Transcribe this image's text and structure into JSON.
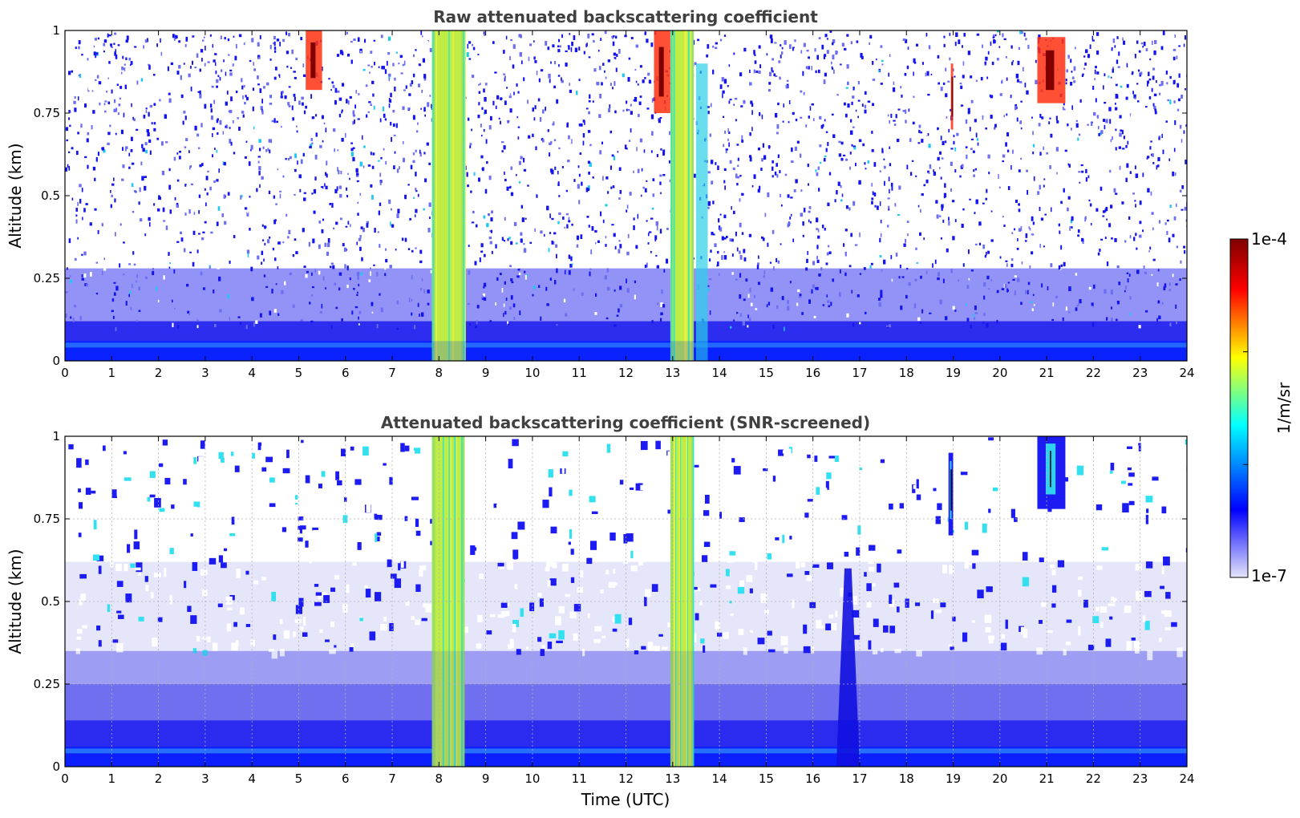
{
  "chart_data": [
    {
      "type": "heatmap",
      "title": "Raw attenuated backscattering coefficient",
      "xlabel": "",
      "ylabel": "Altitude (km)",
      "xlim": [
        0,
        24
      ],
      "ylim": [
        0,
        1
      ],
      "x_ticks": [
        "0",
        "1",
        "2",
        "3",
        "4",
        "5",
        "6",
        "7",
        "8",
        "9",
        "10",
        "11",
        "12",
        "13",
        "14",
        "15",
        "16",
        "17",
        "18",
        "19",
        "20",
        "21",
        "22",
        "23",
        "24"
      ],
      "y_ticks": [
        "0",
        "0.25",
        "0.5",
        "0.75",
        "1"
      ],
      "grid": false,
      "background_level": "noisy, blue speckle throughout",
      "features": [
        {
          "t_start": 7.85,
          "t_end": 8.55,
          "z_top": 1.0,
          "level": "high"
        },
        {
          "t_start": 12.95,
          "t_end": 13.45,
          "z_top": 1.0,
          "level": "high"
        },
        {
          "t_start": 13.5,
          "t_end": 13.75,
          "z_top": 0.9,
          "level": "medium"
        },
        {
          "t_start": 5.15,
          "t_end": 5.5,
          "z_bottom": 0.82,
          "z_top": 1.0,
          "level": "very high"
        },
        {
          "t_start": 12.6,
          "t_end": 12.95,
          "z_bottom": 0.75,
          "z_top": 1.0,
          "level": "very high"
        },
        {
          "t_start": 18.95,
          "t_end": 19.0,
          "z_bottom": 0.7,
          "z_top": 0.9,
          "level": "very high"
        },
        {
          "t_start": 20.8,
          "t_end": 21.4,
          "z_bottom": 0.78,
          "z_top": 0.98,
          "level": "very high"
        },
        {
          "t_start": 0,
          "t_end": 24,
          "z_top": 0.06,
          "level": "near-surface layer"
        }
      ]
    },
    {
      "type": "heatmap",
      "title": "Attenuated backscattering coefficient (SNR-screened)",
      "xlabel": "Time (UTC)",
      "ylabel": "Altitude (km)",
      "xlim": [
        0,
        24
      ],
      "ylim": [
        0,
        1
      ],
      "x_ticks": [
        "0",
        "1",
        "2",
        "3",
        "4",
        "5",
        "6",
        "7",
        "8",
        "9",
        "10",
        "11",
        "12",
        "13",
        "14",
        "15",
        "16",
        "17",
        "18",
        "19",
        "20",
        "21",
        "22",
        "23",
        "24"
      ],
      "y_ticks": [
        "0",
        "0.25",
        "0.5",
        "0.75",
        "1"
      ],
      "grid": true,
      "features": [
        {
          "t_start": 7.85,
          "t_end": 8.55,
          "z_top": 1.0,
          "level": "high"
        },
        {
          "t_start": 12.95,
          "t_end": 13.45,
          "z_top": 1.0,
          "level": "high"
        },
        {
          "t_start": 0,
          "t_end": 24,
          "z_top": 0.35,
          "level": "boundary layer"
        },
        {
          "t_start": 16.5,
          "t_end": 17.0,
          "z_top": 0.6,
          "level": "plume"
        },
        {
          "t_start": 18.9,
          "t_end": 19.0,
          "z_bottom": 0.7,
          "z_top": 0.95,
          "level": "cloud"
        },
        {
          "t_start": 20.8,
          "t_end": 21.4,
          "z_bottom": 0.78,
          "z_top": 1.0,
          "level": "cloud"
        }
      ]
    }
  ],
  "colorbar": {
    "label": "1/m/sr",
    "max_label": "1e-4",
    "min_label": "1e-7",
    "stops": [
      "#e6e6fa",
      "#0000ff",
      "#00ffff",
      "#ffff00",
      "#ff0000",
      "#800000"
    ]
  }
}
